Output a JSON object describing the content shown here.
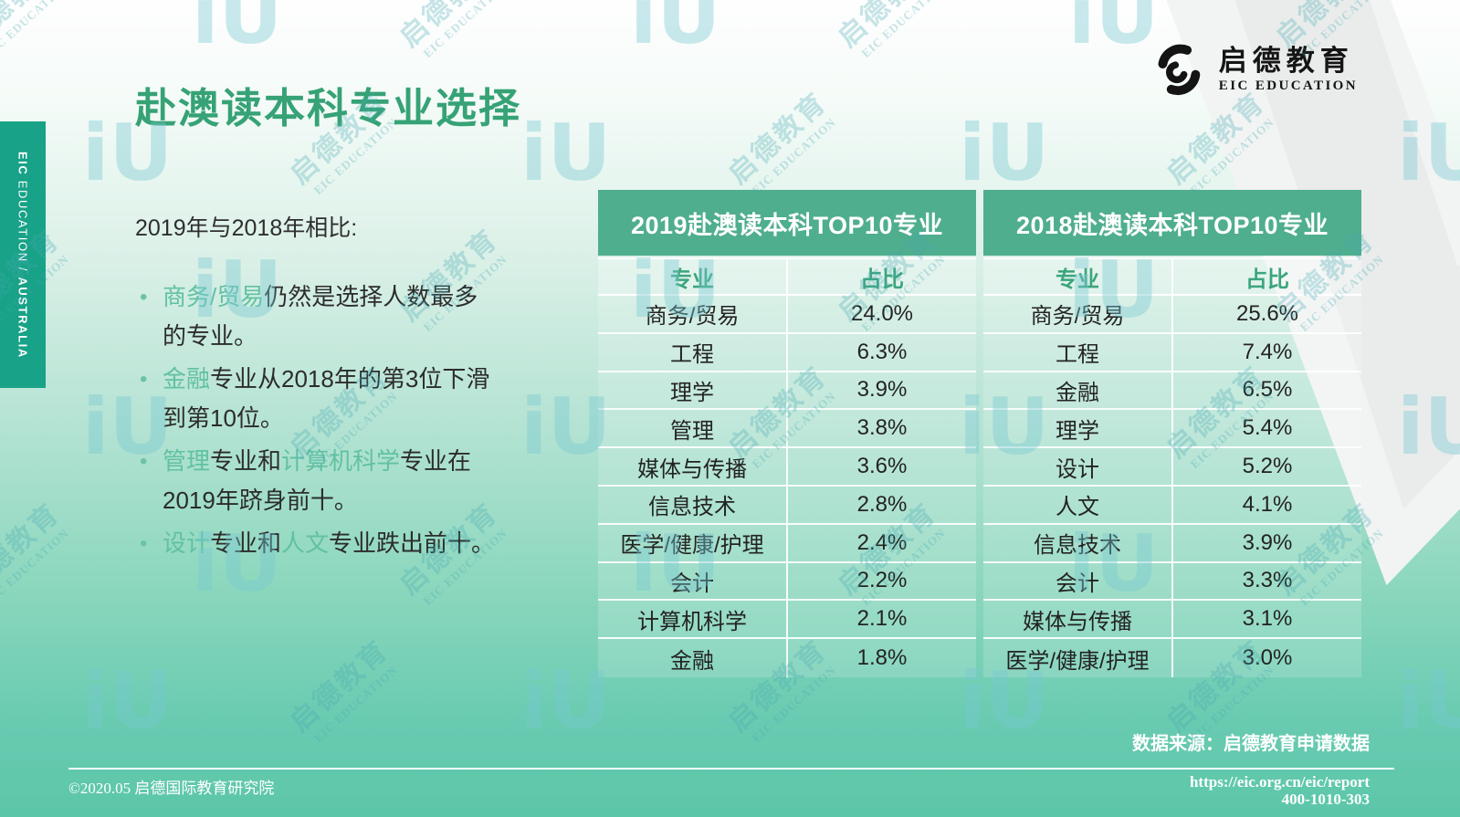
{
  "page": {
    "title": "赴澳读本科专业选择"
  },
  "sidebar": {
    "prefix": "EIC",
    "middle": " EDUCATION / ",
    "suffix": "AUSTRALIA"
  },
  "logo": {
    "name_cn": "启德教育",
    "name_en": "EIC EDUCATION"
  },
  "intro": {
    "heading": "2019年与2018年相比:"
  },
  "bullets": [
    {
      "segments": [
        {
          "text": "商务/贸易"
        },
        {
          "text": "仍然是选择人数最多"
        },
        {
          "text": "的专业。"
        }
      ]
    },
    {
      "segments": [
        {
          "text": "金融"
        },
        {
          "text": "专业从2018年的第3位下滑到第10位。"
        }
      ]
    },
    {
      "segments": [
        {
          "text": "管理"
        },
        {
          "text": "专业和"
        },
        {
          "text": "计算机科学"
        },
        {
          "text": "专业在2019年跻身前十。"
        }
      ]
    },
    {
      "segments": [
        {
          "text": "设计"
        },
        {
          "text": "专业和"
        },
        {
          "text": "人文"
        },
        {
          "text": "专业跌出前十。"
        }
      ]
    }
  ],
  "tables": [
    {
      "title": "2019赴澳读本科TOP10专业",
      "col_major": "专业",
      "col_share": "占比",
      "rows": [
        [
          "商务/贸易",
          "24.0%"
        ],
        [
          "工程",
          "6.3%"
        ],
        [
          "理学",
          "3.9%"
        ],
        [
          "管理",
          "3.8%"
        ],
        [
          "媒体与传播",
          "3.6%"
        ],
        [
          "信息技术",
          "2.8%"
        ],
        [
          "医学/健康/护理",
          "2.4%"
        ],
        [
          "会计",
          "2.2%"
        ],
        [
          "计算机科学",
          "2.1%"
        ],
        [
          "金融",
          "1.8%"
        ]
      ]
    },
    {
      "title": "2018赴澳读本科TOP10专业",
      "col_major": "专业",
      "col_share": "占比",
      "rows": [
        [
          "商务/贸易",
          "25.6%"
        ],
        [
          "工程",
          "7.4%"
        ],
        [
          "金融",
          "6.5%"
        ],
        [
          "理学",
          "5.4%"
        ],
        [
          "设计",
          "5.2%"
        ],
        [
          "人文",
          "4.1%"
        ],
        [
          "信息技术",
          "3.9%"
        ],
        [
          "会计",
          "3.3%"
        ],
        [
          "媒体与传播",
          "3.1%"
        ],
        [
          "医学/健康/护理",
          "3.0%"
        ]
      ]
    }
  ],
  "footer": {
    "source": "数据来源：启德教育申请数据",
    "url": "https://eic.org.cn/eic/report",
    "phone": "400-1010-303",
    "copyright": "©2020.05 启德国际教育研究院"
  },
  "watermark": {
    "text_cn": "启德教育",
    "text_en": "EIC EDUCATION",
    "glyph": "iU"
  },
  "colors": {
    "title_green": "#36a276",
    "table_header_green": "#4fae8d",
    "sidebar_green": "#18a287",
    "keyword_green": "#62c1a2",
    "body_text": "#2c2c2c",
    "footer_text": "#ffffff",
    "background_bottom": "#5cc6a9"
  }
}
